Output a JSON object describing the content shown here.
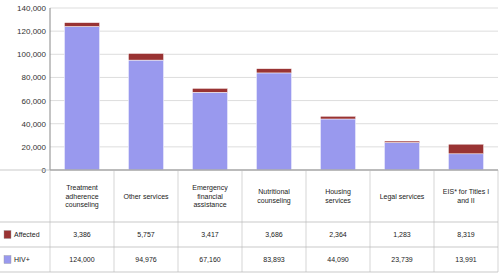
{
  "chart_data": {
    "type": "bar",
    "stacked": true,
    "grid": true,
    "categories": [
      "Treatment\nadherence\ncounseling",
      "Other services",
      "Emergency\nfinancial\nassistance",
      "Nutritional\ncounseling",
      "Housing\nservices",
      "Legal services",
      "EIS* for Titles I\nand II"
    ],
    "series": [
      {
        "name": "HIV+",
        "color": "#9999ee",
        "values": [
          124000,
          94976,
          67160,
          83893,
          44090,
          23739,
          13991
        ],
        "value_labels": [
          "124,000",
          "94,976",
          "67,160",
          "83,893",
          "44,090",
          "23,739",
          "13,991"
        ]
      },
      {
        "name": "Affected",
        "color": "#993333",
        "values": [
          3386,
          5757,
          3417,
          3686,
          2364,
          1283,
          8319
        ],
        "value_labels": [
          "3,386",
          "5,757",
          "3,417",
          "3,686",
          "2,364",
          "1,283",
          "8,319"
        ]
      }
    ],
    "ylim": [
      0,
      140000
    ],
    "yticks": [
      0,
      {
        "value": 20000,
        "label": "20,000"
      },
      {
        "value": 40000,
        "label": "40,000"
      },
      {
        "value": 60000,
        "label": "60,000"
      },
      {
        "value": 80000,
        "label": "80,000"
      },
      {
        "value": 100000,
        "label": "100,000"
      },
      {
        "value": 120000,
        "label": "120,000"
      },
      {
        "value": 140000,
        "label": "140,000"
      }
    ]
  }
}
